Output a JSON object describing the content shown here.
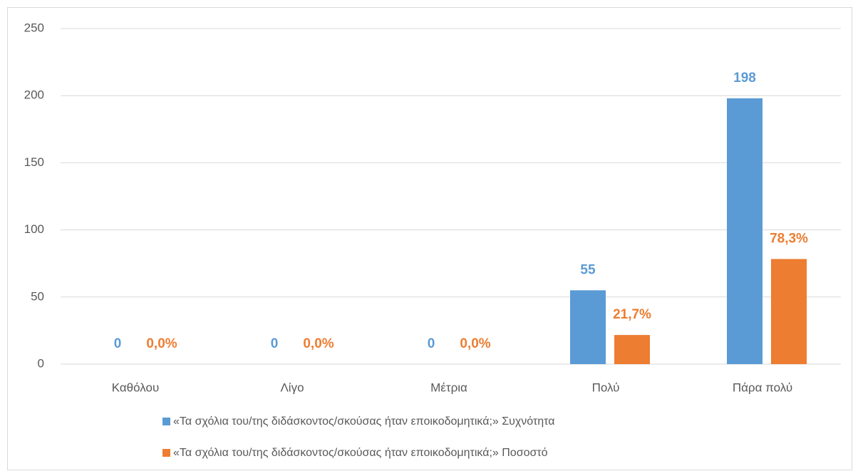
{
  "chart_data": {
    "type": "bar",
    "categories": [
      "Καθόλου",
      "Λίγο",
      "Μέτρια",
      "Πολύ",
      "Πάρα πολύ"
    ],
    "series": [
      {
        "name": "«Τα σχόλια του/της διδάσκοντος/σκούσας ήταν εποικοδομητικά;» Συχνότητα",
        "color": "#5b9bd5",
        "values": [
          0,
          0,
          0,
          55,
          198
        ]
      },
      {
        "name": "«Τα σχόλια του/της διδάσκοντος/σκούσας ήταν εποικοδομητικά;» Ποσοστό",
        "color": "#ed7d31",
        "values": [
          0,
          0,
          0,
          21.7,
          78.3
        ],
        "value_labels": [
          "0,0%",
          "0,0%",
          "0,0%",
          "21,7%",
          "78,3%"
        ]
      }
    ],
    "ylim": [
      0,
      250
    ],
    "yticks": [
      0,
      50,
      100,
      150,
      200,
      250
    ],
    "grid": true,
    "legend": "bottom"
  }
}
